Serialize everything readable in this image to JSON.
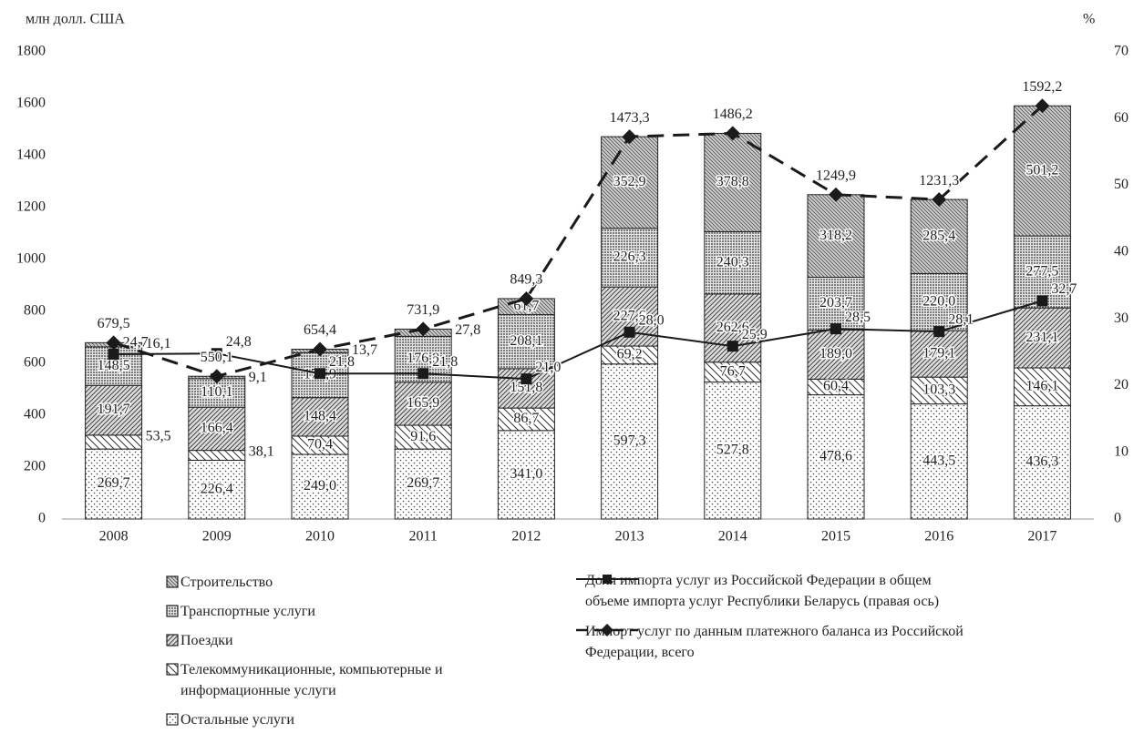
{
  "chart_data": {
    "type": "bar-line",
    "y_label": "млн долл. США",
    "y2_label": "%",
    "categories": [
      "2008",
      "2009",
      "2010",
      "2011",
      "2012",
      "2013",
      "2014",
      "2015",
      "2016",
      "2017"
    ],
    "ylim": [
      0,
      1800
    ],
    "yticks": [
      0,
      200,
      400,
      600,
      800,
      1000,
      1200,
      1400,
      1600,
      1800
    ],
    "y2lim": [
      0,
      70
    ],
    "y2ticks": [
      0,
      10,
      20,
      30,
      40,
      50,
      60,
      70
    ],
    "series": [
      {
        "name": "Остальные услуги",
        "type": "bar",
        "pattern": "dots",
        "color": "#222",
        "values": [
          269.7,
          226.4,
          249.0,
          269.7,
          341.0,
          597.3,
          527.8,
          478.6,
          443.5,
          436.3
        ],
        "value_labels": [
          "269,7",
          "226,4",
          "249,0",
          "269,7",
          "341,0",
          "597,3",
          "527,8",
          "478,6",
          "443,5",
          "436,3"
        ]
      },
      {
        "name": "Телекоммуникационные, компьютерные и информационные услуги",
        "type": "bar",
        "pattern": "back",
        "color": "#222",
        "values": [
          53.5,
          38.1,
          70.4,
          91.6,
          86.7,
          69.2,
          76.7,
          60.4,
          103.3,
          146.1
        ],
        "value_labels": [
          "53,5",
          "38,1",
          "70,4",
          "91,6",
          "86,7",
          "69,2",
          "76,7",
          "60,4",
          "103,3",
          "146,1"
        ]
      },
      {
        "name": "Поездки",
        "type": "bar",
        "pattern": "fwd",
        "color": "#222",
        "values": [
          191.7,
          166.4,
          148.4,
          165.9,
          151.8,
          227.6,
          262.6,
          189.0,
          179.1,
          231.1
        ],
        "value_labels": [
          "191,7",
          "166,4",
          "148,4",
          "165,9",
          "151,8",
          "227,6",
          "262,6",
          "189,0",
          "179,1",
          "231,1"
        ]
      },
      {
        "name": "Транспортные услуги",
        "type": "bar",
        "pattern": "dense",
        "color": "#222",
        "values": [
          148.5,
          110.1,
          172.9,
          176.9,
          208.1,
          226.3,
          240.3,
          203.7,
          220.0,
          277.5
        ],
        "value_labels": [
          "148,5",
          "110,1",
          "172,9",
          "176,9",
          "208,1",
          "226,3",
          "240,3",
          "203,7",
          "220,0",
          "277,5"
        ]
      },
      {
        "name": "Строительство",
        "type": "bar",
        "pattern": "cross",
        "color": "#222",
        "values": [
          16.1,
          9.1,
          13.7,
          27.8,
          61.7,
          352.9,
          378.8,
          318.2,
          285.4,
          501.2
        ],
        "value_labels": [
          "16,1",
          "9,1",
          "13,7",
          "27,8",
          "61,7",
          "352,9",
          "378,8",
          "318,2",
          "285,4",
          "501,2"
        ]
      },
      {
        "name": "Доля импорта услуг из Российской Федерации в общем объеме импорта услуг Республики Беларусь (правая ось)",
        "type": "line",
        "axis": "y2",
        "line_style": "solid",
        "marker": "square",
        "color": "#1a1a1a",
        "values": [
          24.7,
          24.8,
          21.8,
          21.8,
          21.0,
          28.0,
          25.9,
          28.5,
          28.1,
          32.7
        ],
        "value_labels": [
          "24,7",
          "24,8",
          "21,8",
          "21,8",
          "21,0",
          "28,0",
          "25,9",
          "28,5",
          "28,1",
          "32,7"
        ]
      },
      {
        "name": "Импорт услуг по данным платежного баланса из Российской Федерации, всего",
        "type": "line",
        "line_style": "dashed",
        "marker": "diamond",
        "color": "#1a1a1a",
        "values": [
          679.5,
          550.1,
          654.4,
          731.9,
          849.3,
          1473.3,
          1486.2,
          1249.9,
          1231.3,
          1592.2
        ],
        "value_labels": [
          "679,5",
          "550,1",
          "654,4",
          "731,9",
          "849,3",
          "1473,3",
          "1486,2",
          "1249,9",
          "1231,3",
          "1592,2"
        ]
      }
    ]
  }
}
